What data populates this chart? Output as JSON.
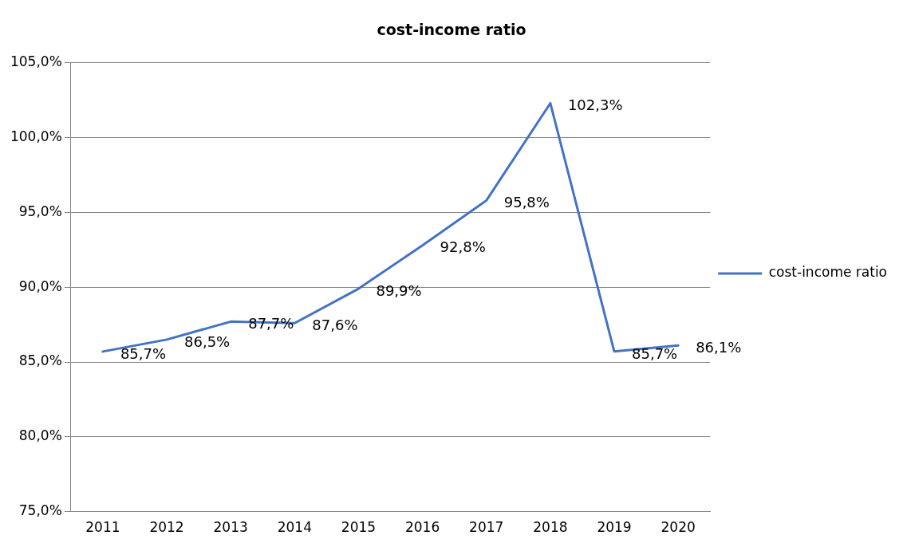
{
  "chart_data": {
    "type": "line",
    "title": "cost-income ratio",
    "categories": [
      "2011",
      "2012",
      "2013",
      "2014",
      "2015",
      "2016",
      "2017",
      "2018",
      "2019",
      "2020"
    ],
    "series": [
      {
        "name": "cost-income ratio",
        "color": "#4472c4",
        "values": [
          85.7,
          86.5,
          87.7,
          87.6,
          89.9,
          92.8,
          95.8,
          102.3,
          85.7,
          86.1
        ],
        "value_labels": [
          "85,7%",
          "86,5%",
          "87,7%",
          "87,6%",
          "89,9%",
          "92,8%",
          "95,8%",
          "102,3%",
          "85,7%",
          "86,1%"
        ]
      }
    ],
    "ylim": [
      75,
      105
    ],
    "yticks": [
      {
        "value": 75,
        "label": "75,0%"
      },
      {
        "value": 80,
        "label": "80,0%"
      },
      {
        "value": 85,
        "label": "85,0%"
      },
      {
        "value": 90,
        "label": "90,0%"
      },
      {
        "value": 95,
        "label": "95,0%"
      },
      {
        "value": 100,
        "label": "100,0%"
      },
      {
        "value": 105,
        "label": "105,0%"
      }
    ],
    "grid": "y",
    "legend": "right",
    "marker": "none",
    "line_style": "solid"
  }
}
